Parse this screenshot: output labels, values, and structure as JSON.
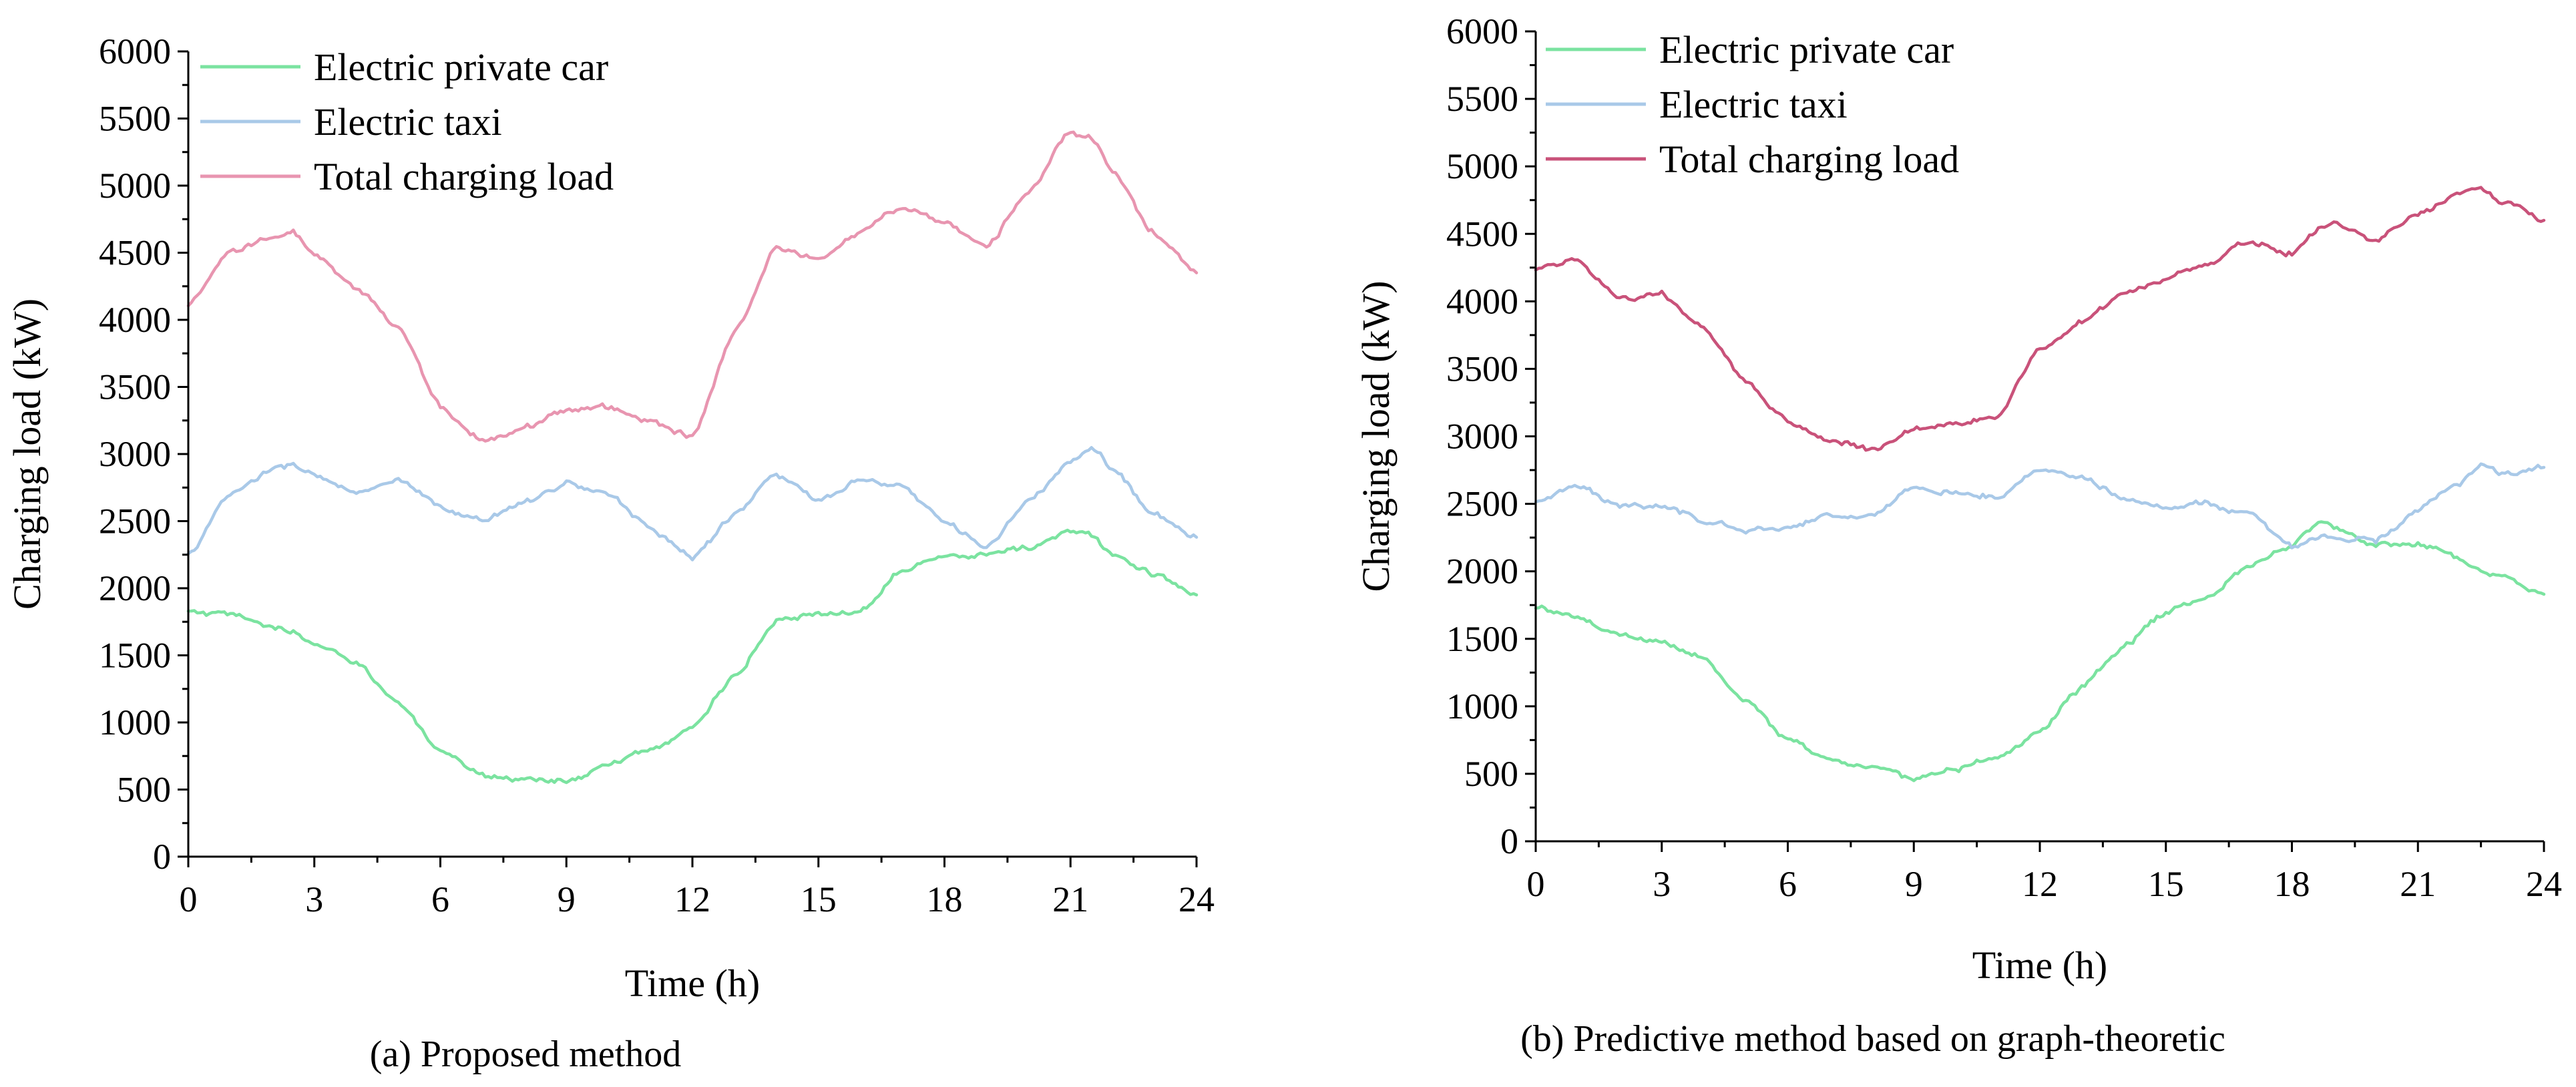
{
  "chart_data": [
    {
      "type": "line",
      "caption": "(a) Proposed method",
      "xlabel": "Time (h)",
      "ylabel": "Charging load (kW)",
      "xlim": [
        0,
        24
      ],
      "ylim": [
        0,
        6000
      ],
      "xticks": [
        0,
        3,
        6,
        9,
        12,
        15,
        18,
        21,
        24
      ],
      "yticks": [
        0,
        500,
        1000,
        1500,
        2000,
        2500,
        3000,
        3500,
        4000,
        4500,
        5000,
        5500,
        6000
      ],
      "legend_position": "top-left",
      "x": [
        0,
        1,
        2,
        2.5,
        3,
        4,
        5,
        6,
        7,
        8,
        9,
        10,
        11,
        12,
        13,
        14,
        15,
        16,
        17,
        18,
        19,
        20,
        21,
        21.5,
        22,
        23,
        24
      ],
      "series": [
        {
          "name": "Electric private car",
          "color": "#7be3a0",
          "values": [
            1820,
            1800,
            1720,
            1660,
            1580,
            1450,
            1150,
            770,
            610,
            580,
            560,
            680,
            800,
            960,
            1350,
            1750,
            1800,
            1830,
            2150,
            2250,
            2250,
            2300,
            2420,
            2400,
            2250,
            2100,
            1950
          ]
        },
        {
          "name": "Electric taxi",
          "color": "#a9c9e8",
          "values": [
            2250,
            2700,
            2880,
            2920,
            2850,
            2700,
            2800,
            2600,
            2500,
            2650,
            2780,
            2700,
            2450,
            2230,
            2550,
            2850,
            2650,
            2800,
            2750,
            2500,
            2300,
            2650,
            2930,
            3040,
            2900,
            2550,
            2380
          ]
        },
        {
          "name": "Total charging load",
          "color": "#e895b0",
          "values": [
            4100,
            4500,
            4620,
            4650,
            4480,
            4230,
            3950,
            3350,
            3100,
            3200,
            3330,
            3350,
            3250,
            3120,
            3900,
            4550,
            4450,
            4650,
            4850,
            4720,
            4550,
            4950,
            5400,
            5350,
            5100,
            4650,
            4350
          ]
        }
      ]
    },
    {
      "type": "line",
      "caption": "(b) Predictive method based on graph-theoretic",
      "xlabel": "Time (h)",
      "ylabel": "Charging load (kW)",
      "xlim": [
        0,
        24
      ],
      "ylim": [
        0,
        6000
      ],
      "xticks": [
        0,
        3,
        6,
        9,
        12,
        15,
        18,
        21,
        24
      ],
      "yticks": [
        0,
        500,
        1000,
        1500,
        2000,
        2500,
        3000,
        3500,
        4000,
        4500,
        5000,
        5500,
        6000
      ],
      "legend_position": "top-left",
      "x": [
        0,
        1,
        2,
        3,
        4,
        5,
        6,
        7,
        8,
        9,
        10,
        11,
        12,
        13,
        14,
        15,
        16,
        17,
        18,
        18.7,
        19,
        20,
        21,
        22,
        22.5,
        23,
        24
      ],
      "series": [
        {
          "name": "Electric private car",
          "color": "#7be3a0",
          "values": [
            1740,
            1650,
            1530,
            1480,
            1350,
            1050,
            750,
            600,
            550,
            470,
            540,
            620,
            800,
            1150,
            1450,
            1700,
            1820,
            2050,
            2200,
            2370,
            2330,
            2200,
            2200,
            2100,
            2000,
            1980,
            1830
          ]
        },
        {
          "name": "Electric taxi",
          "color": "#a9c9e8",
          "values": [
            2530,
            2620,
            2500,
            2480,
            2380,
            2300,
            2330,
            2420,
            2400,
            2620,
            2580,
            2550,
            2760,
            2700,
            2550,
            2480,
            2500,
            2420,
            2180,
            2250,
            2250,
            2230,
            2450,
            2650,
            2780,
            2720,
            2770
          ]
        },
        {
          "name": "Total charging load",
          "color": "#c9527a",
          "values": [
            4250,
            4300,
            4020,
            4050,
            3800,
            3400,
            3100,
            2970,
            2900,
            3050,
            3100,
            3150,
            3650,
            3850,
            4050,
            4180,
            4280,
            4450,
            4350,
            4550,
            4580,
            4450,
            4650,
            4800,
            4850,
            4750,
            4600
          ]
        }
      ]
    }
  ]
}
